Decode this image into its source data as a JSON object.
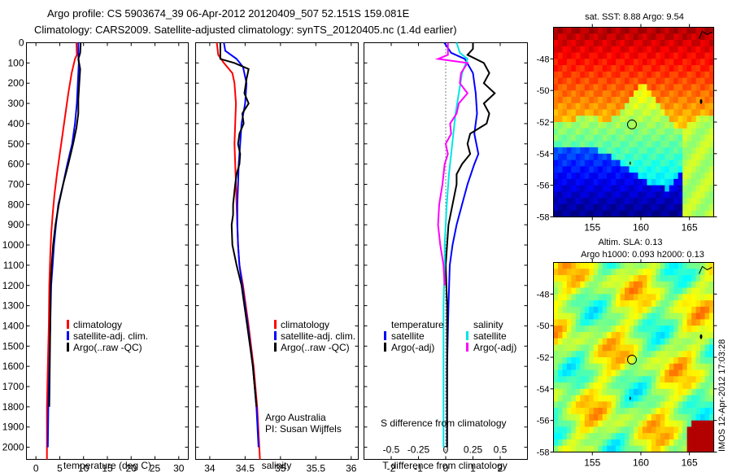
{
  "title_line1": "Argo profile: CS 5903674_39 06-Apr-2012 20120409_507 52.151S 159.081E",
  "title_line2": "Climatology: CARS2009. Satellite-adjusted climatology: synTS_20120405.nc (1.4d earlier)",
  "chart_data": [
    {
      "id": "temperature",
      "type": "line",
      "xlabel": "temperature (deg C)",
      "ylabel": "",
      "xlim": [
        -2,
        32
      ],
      "ylim": [
        2060,
        0
      ],
      "xticks": [
        0,
        5,
        10,
        15,
        20,
        25,
        30
      ],
      "yticks": [
        0,
        100,
        200,
        300,
        400,
        500,
        600,
        700,
        800,
        900,
        1000,
        1100,
        1200,
        1300,
        1400,
        1500,
        1600,
        1700,
        1800,
        1900,
        2000
      ],
      "legend": [
        "climatology",
        "satellite-adj. clim.",
        "Argo(..raw -QC)"
      ],
      "legend_placement": "center",
      "series": [
        {
          "name": "climatology",
          "color": "#ff0000",
          "depth": [
            0,
            60,
            80,
            150,
            250,
            350,
            450,
            550,
            650,
            750,
            850,
            950,
            1050,
            1200,
            1400,
            1600,
            1800,
            2060
          ],
          "values": [
            8.5,
            8.6,
            8.2,
            7.5,
            6.8,
            6.2,
            5.6,
            5.0,
            4.4,
            3.9,
            3.5,
            3.2,
            3.0,
            2.8,
            2.7,
            2.5,
            2.3,
            2.3
          ]
        },
        {
          "name": "satellite-adj. clim.",
          "color": "#0000ff",
          "depth": [
            0,
            60,
            100,
            200,
            300,
            400,
            500,
            600,
            700,
            800,
            900,
            1000,
            1100,
            1200,
            1400,
            1600,
            1800,
            2000
          ],
          "values": [
            8.9,
            8.9,
            9.0,
            8.8,
            8.6,
            8.2,
            7.6,
            6.6,
            5.7,
            4.7,
            4.2,
            3.8,
            3.5,
            3.2,
            3.0,
            2.8,
            2.6,
            2.5
          ]
        },
        {
          "name": "Argo(..raw -QC)",
          "color": "#000000",
          "depth": [
            0,
            50,
            80,
            130,
            200,
            280,
            350,
            420,
            500,
            600,
            700,
            800,
            900,
            1000,
            1100,
            1200,
            1400,
            1600,
            1800
          ],
          "values": [
            9.4,
            9.3,
            8.9,
            9.3,
            9.1,
            8.9,
            8.9,
            8.5,
            7.8,
            6.8,
            5.7,
            4.8,
            4.1,
            3.6,
            3.3,
            3.1,
            3.0,
            2.9,
            2.8
          ]
        }
      ]
    },
    {
      "id": "salinity",
      "type": "line",
      "xlabel": "salinity",
      "xlim": [
        33.8,
        36.1
      ],
      "ylim": [
        2060,
        0
      ],
      "xticks": [
        34,
        34.5,
        35,
        35.5,
        36
      ],
      "legend": [
        "climatology",
        "satellite-adj. clim.",
        "Argo(..raw -QC)"
      ],
      "legend_placement": "bottom-right",
      "annotation": [
        "Argo Australia",
        "PI: Susan Wijffels"
      ],
      "series": [
        {
          "name": "climatology",
          "color": "#ff0000",
          "depth": [
            0,
            60,
            100,
            150,
            200,
            300,
            400,
            500,
            600,
            700,
            800,
            900,
            1000,
            1100,
            1200,
            1400,
            1600,
            1800,
            2060
          ],
          "values": [
            34.1,
            34.12,
            34.2,
            34.32,
            34.35,
            34.37,
            34.36,
            34.35,
            34.36,
            34.37,
            34.38,
            34.39,
            34.4,
            34.42,
            34.47,
            34.55,
            34.62,
            34.67,
            34.71
          ]
        },
        {
          "name": "satellite-adj. clim.",
          "color": "#0000ff",
          "depth": [
            0,
            40,
            80,
            120,
            200,
            300,
            400,
            500,
            600,
            700,
            800,
            900,
            1000,
            1100,
            1200,
            1400,
            1600,
            1800,
            2000
          ],
          "values": [
            34.2,
            34.22,
            34.38,
            34.47,
            34.52,
            34.5,
            34.45,
            34.43,
            34.41,
            34.4,
            34.39,
            34.39,
            34.4,
            34.42,
            34.46,
            34.54,
            34.61,
            34.66,
            34.69
          ]
        },
        {
          "name": "Argo(..raw -QC)",
          "color": "#000000",
          "depth": [
            0,
            80,
            100,
            130,
            180,
            250,
            300,
            350,
            400,
            450,
            500,
            550,
            600,
            650,
            700,
            800,
            850,
            900,
            1000,
            1100,
            1200,
            1400,
            1600,
            1800
          ],
          "values": [
            34.15,
            34.15,
            34.35,
            34.55,
            34.52,
            34.49,
            34.55,
            34.46,
            34.48,
            34.42,
            34.4,
            34.43,
            34.42,
            34.38,
            34.36,
            34.33,
            34.33,
            34.31,
            34.32,
            34.38,
            34.45,
            34.53,
            34.61,
            34.66
          ]
        }
      ]
    },
    {
      "id": "difference",
      "type": "line",
      "xlabel": "T difference from climatology",
      "xlabel_top": "S difference from climatology",
      "xlim": [
        -3,
        3
      ],
      "xlim_top": [
        -0.75,
        0.75
      ],
      "ylim": [
        2060,
        0
      ],
      "xticks": [
        -2,
        -1,
        0,
        1,
        2
      ],
      "xticks_top": [
        -0.5,
        -0.25,
        0,
        0.25,
        0.5
      ],
      "legend_groups": [
        {
          "heading": "temperature",
          "items": [
            "satellite",
            "Argo(-adj)"
          ]
        },
        {
          "heading": "salinity",
          "items": [
            "satellite",
            "Argo(-adj)"
          ]
        }
      ],
      "legend_placement": "center",
      "series": [
        {
          "name": "temperature satellite",
          "color": "#0000ff",
          "depth": [
            0,
            50,
            80,
            150,
            250,
            350,
            450,
            550,
            600,
            700,
            800,
            900,
            1000,
            1100,
            1300,
            1600,
            2000
          ],
          "values": [
            -0.05,
            0.2,
            0.7,
            1.0,
            1.1,
            1.15,
            1.05,
            1.2,
            1.05,
            0.8,
            0.6,
            0.4,
            0.25,
            0.15,
            0.1,
            0.05,
            0.05
          ]
        },
        {
          "name": "temperature Argo(-adj)",
          "color": "#000000",
          "depth": [
            0,
            30,
            60,
            100,
            150,
            200,
            250,
            300,
            350,
            400,
            450,
            500,
            550,
            600,
            650,
            700,
            800,
            900,
            1000,
            1100,
            1300,
            1600,
            2000
          ],
          "values": [
            1.0,
            1.0,
            0.8,
            1.4,
            1.6,
            1.4,
            1.8,
            1.4,
            1.6,
            1.5,
            0.9,
            0.8,
            0.9,
            0.6,
            0.4,
            0.4,
            0.25,
            0.1,
            0.05,
            0.0,
            0.05,
            0.05,
            0.05
          ]
        },
        {
          "name": "salinity satellite",
          "color": "#00e5e5",
          "depth": [
            0,
            50,
            80,
            150,
            250,
            350,
            450,
            550,
            650,
            800,
            900,
            1000,
            1100,
            1300,
            1600,
            2000
          ],
          "values": [
            0.1,
            0.13,
            0.2,
            0.15,
            0.12,
            0.09,
            0.07,
            0.05,
            0.03,
            0.01,
            0.0,
            -0.01,
            -0.01,
            -0.02,
            -0.02,
            -0.02
          ]
        },
        {
          "name": "salinity Argo(-adj)",
          "color": "#ff00ff",
          "depth": [
            0,
            60,
            80,
            100,
            150,
            200,
            250,
            300,
            350,
            400,
            450,
            500,
            550,
            600,
            700,
            800,
            900,
            1000,
            1100,
            1200
          ],
          "values": [
            0.02,
            0.02,
            -0.07,
            0.2,
            0.14,
            0.13,
            0.2,
            0.12,
            0.1,
            0.04,
            0.05,
            0.0,
            0.02,
            -0.01,
            -0.03,
            -0.06,
            -0.07,
            -0.05,
            -0.02,
            -0.01
          ]
        }
      ]
    },
    {
      "id": "sst_map",
      "type": "heatmap",
      "title": "sat. SST: 8.88 Argo: 9.54",
      "xlim": [
        151,
        167.5
      ],
      "ylim": [
        -58,
        -46
      ],
      "xticks": [
        155,
        160,
        165
      ],
      "yticks": [
        -48,
        -50,
        -52,
        -54,
        -56,
        -58
      ],
      "marker": {
        "lon": 159.081,
        "lat": -52.151
      }
    },
    {
      "id": "sla_map",
      "type": "heatmap",
      "title_line1": "Altim. SLA: 0.13",
      "title_line2": "Argo h1000: 0.093 h2000: 0.13",
      "xlim": [
        151,
        167.5
      ],
      "ylim": [
        -58,
        -46
      ],
      "xticks": [
        155,
        160,
        165
      ],
      "yticks": [
        -48,
        -50,
        -52,
        -54,
        -56,
        -58
      ],
      "marker": {
        "lon": 159.081,
        "lat": -52.151
      },
      "side_label": "IMOS 12-Apr-2012 17:03:28"
    }
  ]
}
